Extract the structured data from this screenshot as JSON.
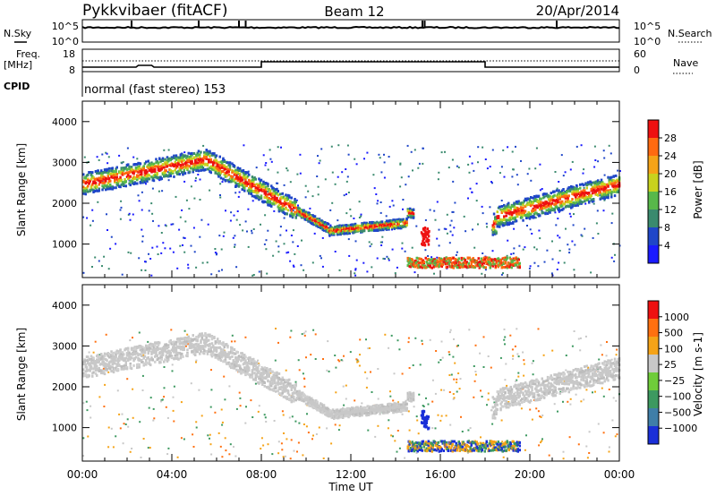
{
  "header": {
    "radar": "Pykkvibaer (fitACF)",
    "beam": "Beam 12",
    "date": "20/Apr/2014"
  },
  "nsky_panel": {
    "left_label": "N.Sky",
    "right_label": "N.Search",
    "left_ticks": [
      "10^5",
      "10^0"
    ],
    "right_ticks": [
      "10^5",
      "10^0"
    ]
  },
  "freq_panel": {
    "left_label_1": "Freq.",
    "left_label_2": "[MHz]",
    "right_label": "Nave",
    "left_ticks": [
      "18",
      "8"
    ],
    "right_ticks": [
      "60",
      "0"
    ]
  },
  "cpid_panel": {
    "label": "CPID",
    "text": "normal (fast stereo) 153"
  },
  "chart_data": [
    {
      "type": "heatmap",
      "name": "power",
      "ylabel": "Slant Range [km]",
      "yticks": [
        1000,
        2000,
        3000,
        4000
      ],
      "ylim": [
        180,
        4500
      ],
      "xlim": [
        0,
        24
      ],
      "colorbar_label": "Power [dB]",
      "colorbar_ticks": [
        "28",
        "24",
        "20",
        "16",
        "12",
        "8",
        "4"
      ],
      "colorbar_colors": [
        "#1a1aff",
        "#1f46c8",
        "#3a8a6e",
        "#58b84a",
        "#c8d21e",
        "#f5a317",
        "#ff6a10",
        "#ee1010"
      ]
    },
    {
      "type": "heatmap",
      "name": "velocity",
      "ylabel": "Slant Range [km]",
      "yticks": [
        1000,
        2000,
        3000,
        4000
      ],
      "ylim": [
        180,
        4500
      ],
      "xlim": [
        0,
        24
      ],
      "colorbar_label": "Velocity [m s-1]",
      "colorbar_ticks": [
        "1000",
        "500",
        "100",
        "25",
        "−25",
        "−100",
        "−500",
        "−1000"
      ],
      "colorbar_colors": [
        "#1a2fd8",
        "#3f7ea8",
        "#3d9960",
        "#6fcc3a",
        "#c8c8c8",
        "#f5a317",
        "#ff7010",
        "#ee1010"
      ]
    }
  ],
  "time_axis": {
    "label": "Time UT",
    "ticks": [
      "00:00",
      "04:00",
      "08:00",
      "12:00",
      "16:00",
      "20:00",
      "00:00"
    ]
  }
}
